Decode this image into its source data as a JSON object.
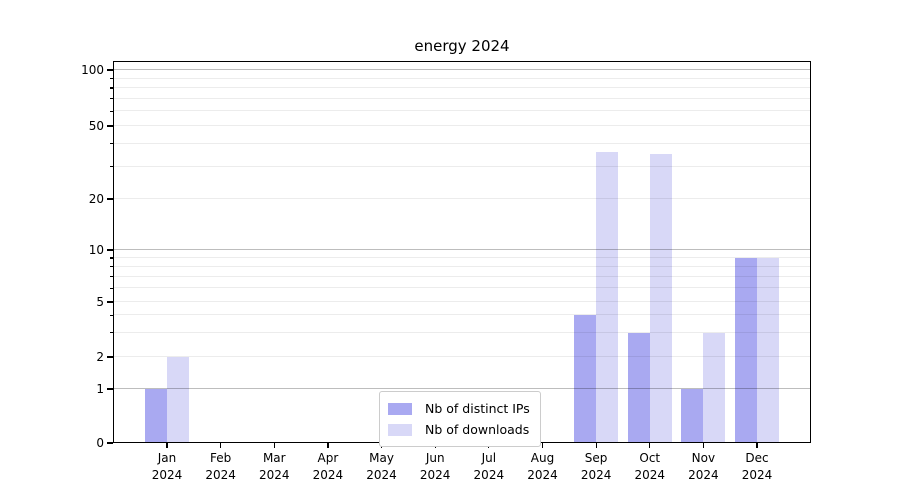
{
  "chart_data": {
    "type": "bar",
    "title": "energy 2024",
    "categories": [
      "Jan 2024",
      "Feb 2024",
      "Mar 2024",
      "Apr 2024",
      "May 2024",
      "Jun 2024",
      "Jul 2024",
      "Aug 2024",
      "Sep 2024",
      "Oct 2024",
      "Nov 2024",
      "Dec 2024"
    ],
    "series": [
      {
        "name": "Nb of distinct IPs",
        "color": "#a9a9f1",
        "values": [
          1,
          0,
          0,
          0,
          0,
          0,
          0,
          0,
          4,
          3,
          1,
          9
        ]
      },
      {
        "name": "Nb of downloads",
        "color": "#d8d8f7",
        "values": [
          2,
          0,
          0,
          0,
          0,
          0,
          0,
          0,
          36,
          35,
          3,
          9
        ]
      }
    ],
    "yticks": [
      0,
      1,
      2,
      5,
      10,
      20,
      50,
      100
    ],
    "ytick_minor": [
      3,
      4,
      6,
      7,
      8,
      9,
      30,
      40,
      60,
      70,
      80,
      90
    ],
    "xlabel": "",
    "ylabel": "",
    "scale": "log-like (0,1,2,5,10,20,50,100)",
    "grid": "on",
    "legend_position": "lower center inside plot",
    "colors": {
      "bar_distinct_ips": "#a9a9f1",
      "bar_downloads": "#d8d8f7",
      "grid_major": "#bdbdbd",
      "grid_minor": "#ececec",
      "axis": "#000000"
    }
  }
}
